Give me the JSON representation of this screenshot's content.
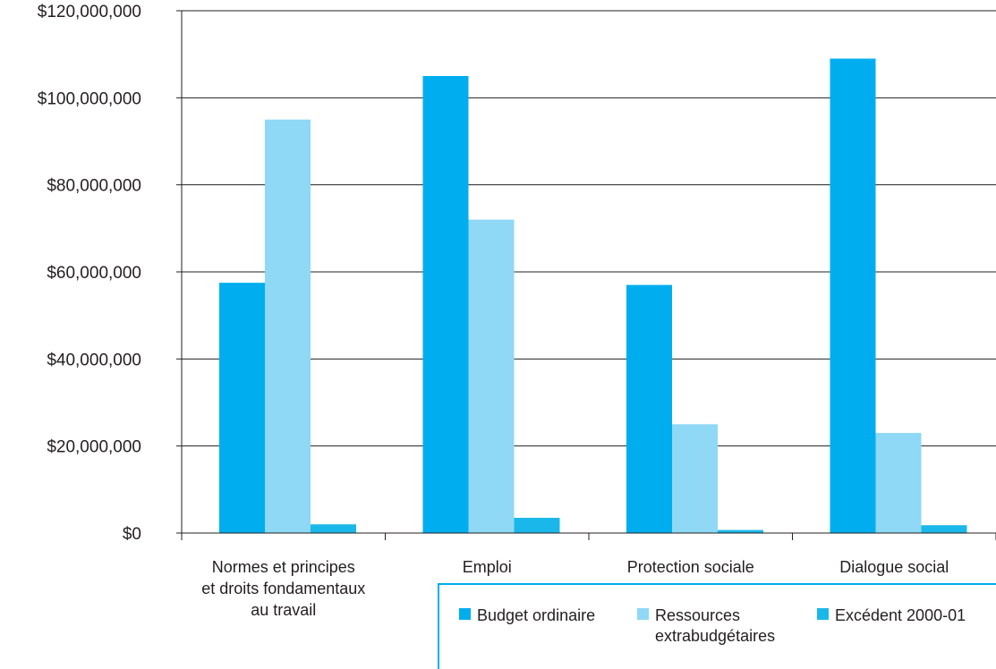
{
  "chart_data": {
    "type": "bar",
    "categories": [
      [
        "Normes et principes",
        "et droits fondamentaux",
        "au travail"
      ],
      [
        "Emploi"
      ],
      [
        "Protection sociale"
      ],
      [
        "Dialogue social"
      ]
    ],
    "series": [
      {
        "name": "Budget ordinaire",
        "color": "#00aeef",
        "values": [
          57500000,
          105000000,
          57000000,
          109000000
        ]
      },
      {
        "name": [
          "Ressources",
          "extrabudgétaires"
        ],
        "color": "#8fd8f6",
        "values": [
          95000000,
          72000000,
          25000000,
          23000000
        ]
      },
      {
        "name": "Excédent 2000-01",
        "color": "#1ab7ea",
        "values": [
          2000000,
          3500000,
          700000,
          1800000
        ]
      }
    ],
    "yticks": [
      "$0",
      "$20,000,000",
      "$40,000,000",
      "$60,000,000",
      "$80,000,000",
      "$100,000,000",
      "$120,000,000"
    ],
    "ylim": [
      0,
      120000000
    ],
    "grid": true,
    "legend": "bottom-right",
    "title": "",
    "xlabel": "",
    "ylabel": ""
  }
}
